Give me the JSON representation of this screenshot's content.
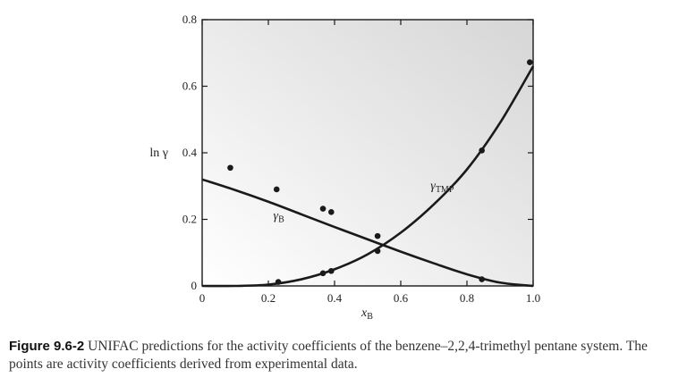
{
  "chart_data": {
    "type": "line",
    "xlabel": "x",
    "xlabel_sub": "B",
    "ylabel": "ln γ",
    "xlim": [
      0,
      1.0
    ],
    "ylim": [
      0,
      0.8
    ],
    "x_ticks": [
      0,
      0.2,
      0.4,
      0.6,
      0.8,
      1.0
    ],
    "x_tick_labels": [
      "0",
      "0.2",
      "0.4",
      "0.6",
      "0.8",
      "1.0"
    ],
    "y_ticks": [
      0,
      0.2,
      0.4,
      0.6,
      0.8
    ],
    "y_tick_labels": [
      "0",
      "0.2",
      "0.4",
      "0.6",
      "0.8"
    ],
    "grid": false,
    "background": "gradient-gray",
    "series": [
      {
        "label_main": "γ",
        "label_sub": "B",
        "kind": "line",
        "x": [
          0,
          0.1,
          0.2,
          0.3,
          0.4,
          0.5,
          0.6,
          0.7,
          0.8,
          0.9,
          1.0
        ],
        "y": [
          0.32,
          0.288,
          0.253,
          0.215,
          0.177,
          0.14,
          0.103,
          0.068,
          0.035,
          0.01,
          0.0
        ]
      },
      {
        "label_main": "γ",
        "label_sub": "TMP",
        "kind": "line",
        "x": [
          0,
          0.1,
          0.2,
          0.3,
          0.4,
          0.5,
          0.6,
          0.7,
          0.8,
          0.9,
          1.0
        ],
        "y": [
          0.0,
          0.0,
          0.004,
          0.02,
          0.05,
          0.095,
          0.16,
          0.245,
          0.35,
          0.49,
          0.66
        ]
      },
      {
        "name": "",
        "kind": "scatter",
        "x": [
          0.085,
          0.225,
          0.365,
          0.39,
          0.53,
          0.53,
          0.845
        ],
        "y": [
          0.355,
          0.29,
          0.232,
          0.222,
          0.15,
          0.105,
          0.02
        ]
      },
      {
        "name": "",
        "kind": "scatter",
        "x": [
          0.23,
          0.365,
          0.39,
          0.845,
          0.99
        ],
        "y": [
          0.012,
          0.038,
          0.045,
          0.407,
          0.672
        ]
      }
    ]
  },
  "caption": {
    "label": "Figure 9.6-2",
    "text": " UNIFAC predictions for the activity coefficients of the benzene–2,2,4-trimethyl pentane system. The points are activity coefficients derived from experimental data."
  },
  "colors": {
    "ink": "#1a1a1a",
    "plot_bg_light": "#ffffff",
    "plot_bg_dark": "#d8d8d8"
  }
}
